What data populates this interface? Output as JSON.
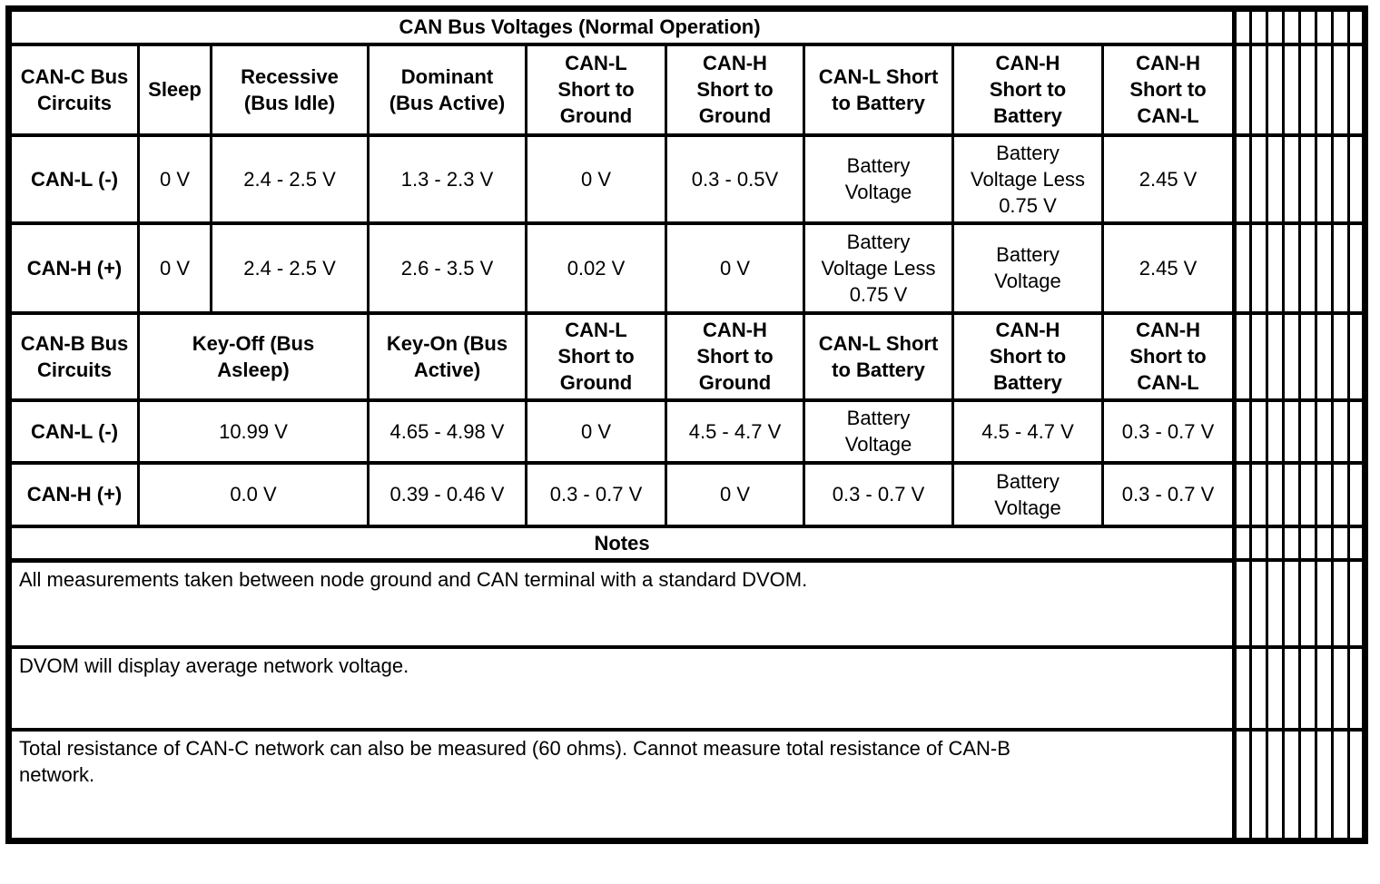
{
  "table": {
    "title": "CAN Bus Voltages (Normal Operation)",
    "canc": {
      "headers": [
        "CAN-C Bus\nCircuits",
        "Sleep",
        "Recessive\n(Bus Idle)",
        "Dominant\n(Bus Active)",
        "CAN-L\nShort to\nGround",
        "CAN-H\nShort to\nGround",
        "CAN-L Short\nto Battery",
        "CAN-H\nShort to\nBattery",
        "CAN-H\nShort to\nCAN-L"
      ],
      "rows": [
        {
          "label": "CAN-L (-)",
          "values": [
            "0 V",
            "2.4 - 2.5 V",
            "1.3 - 2.3 V",
            "0 V",
            "0.3 - 0.5V",
            "Battery\nVoltage",
            "Battery\nVoltage Less\n0.75 V",
            "2.45 V"
          ]
        },
        {
          "label": "CAN-H (+)",
          "values": [
            "0 V",
            "2.4 - 2.5 V",
            "2.6 - 3.5 V",
            "0.02 V",
            "0 V",
            "Battery\nVoltage Less\n0.75 V",
            "Battery\nVoltage",
            "2.45 V"
          ]
        }
      ]
    },
    "canb": {
      "headers": [
        "CAN-B Bus\nCircuits",
        "Key-Off (Bus\nAsleep)",
        "Key-On (Bus\nActive)",
        "CAN-L\nShort to\nGround",
        "CAN-H\nShort to\nGround",
        "CAN-L Short\nto Battery",
        "CAN-H\nShort to\nBattery",
        "CAN-H\nShort to\nCAN-L"
      ],
      "rows": [
        {
          "label": "CAN-L (-)",
          "values": [
            "10.99 V",
            "4.65 - 4.98 V",
            "0 V",
            "4.5 - 4.7 V",
            "Battery\nVoltage",
            "4.5 - 4.7 V",
            "0.3 - 0.7 V"
          ]
        },
        {
          "label": "CAN-H (+)",
          "values": [
            "0.0 V",
            "0.39 - 0.46 V",
            "0.3 - 0.7 V",
            "0 V",
            "0.3 - 0.7 V",
            "Battery\nVoltage",
            "0.3 - 0.7 V"
          ]
        }
      ]
    },
    "notes_title": "Notes",
    "notes": [
      "All measurements taken between node ground and CAN terminal with a standard DVOM.",
      "DVOM will display average network voltage.",
      "Total resistance of CAN-C network can also be measured (60 ohms). Cannot measure total resistance of CAN-B\nnetwork."
    ],
    "colors": {
      "border": "#000000",
      "background": "#ffffff",
      "text": "#000000"
    }
  }
}
